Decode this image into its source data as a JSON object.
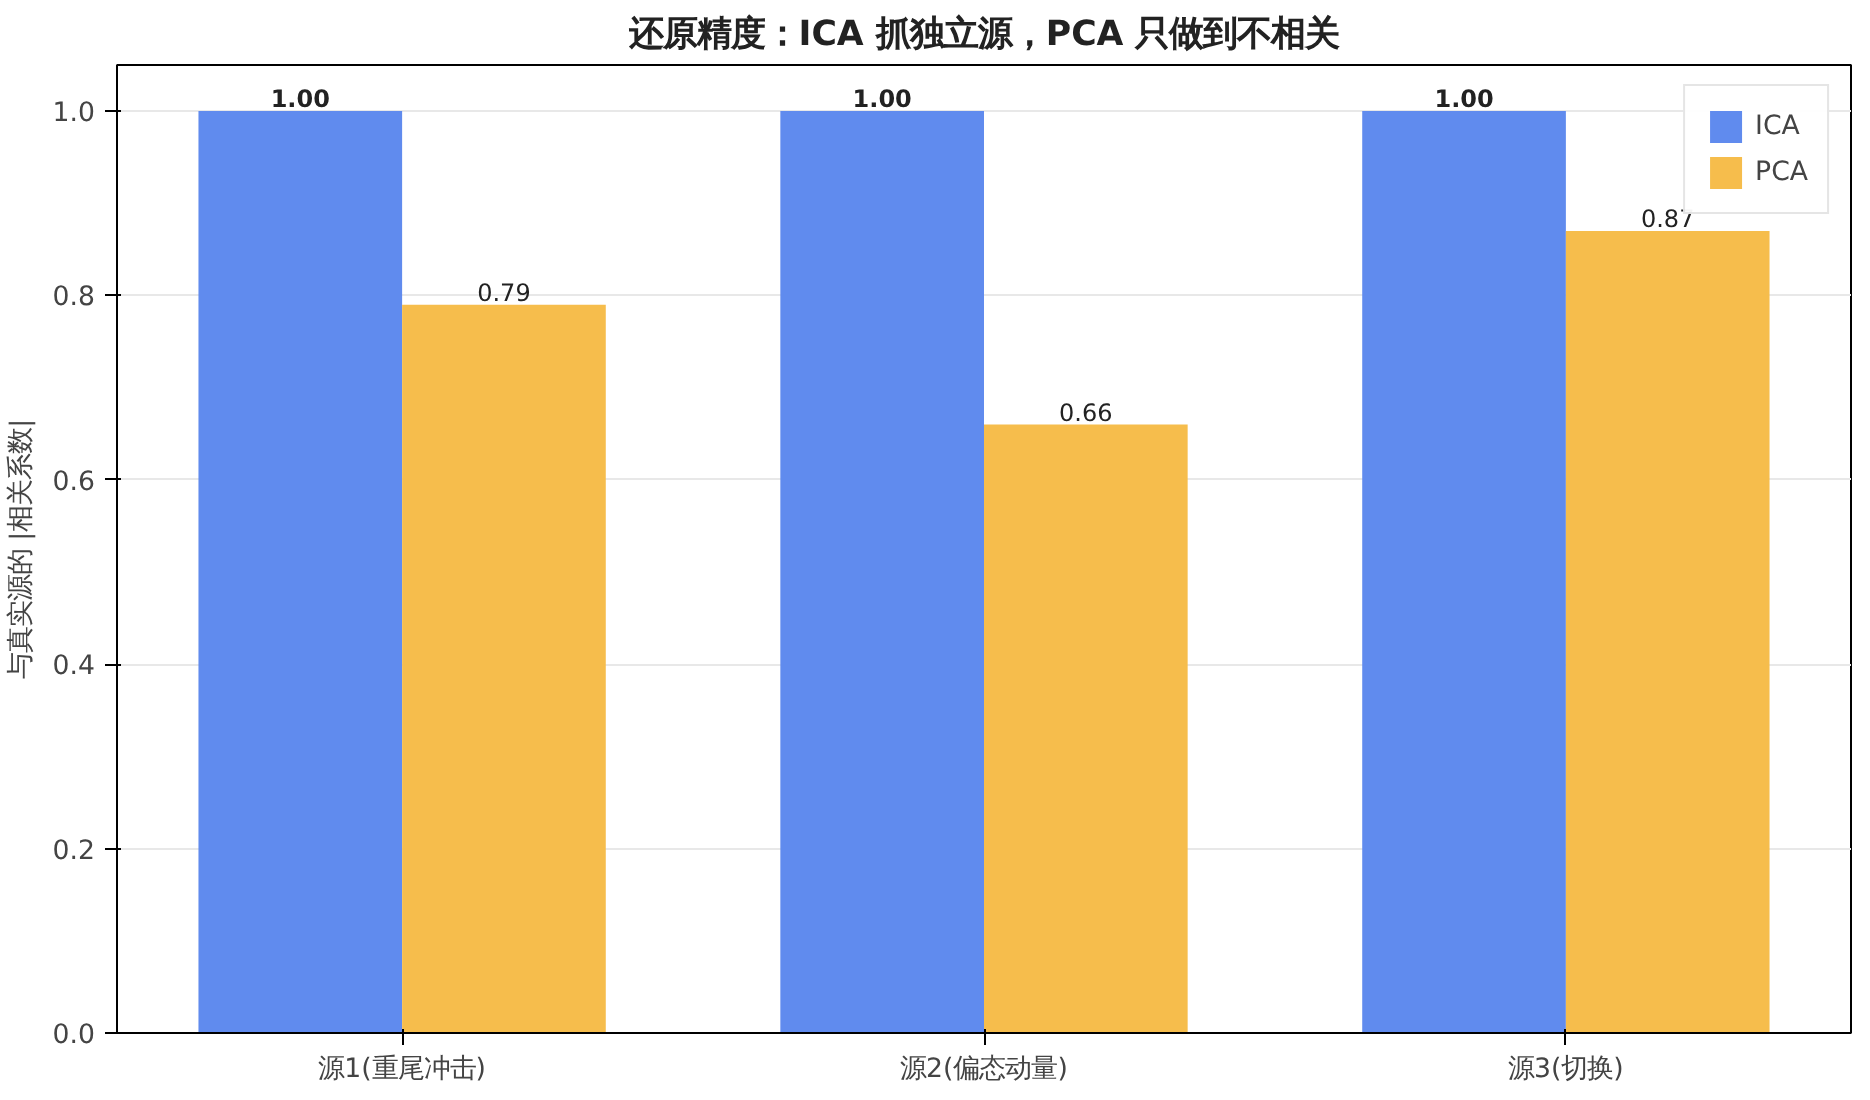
{
  "chart_data": {
    "type": "bar",
    "title": "还原精度：ICA 抓独立源，PCA 只做到不相关",
    "ylabel": "与真实源的 |相关系数|",
    "categories": [
      "源1(重尾冲击)",
      "源2(偏态动量)",
      "源3(切换)"
    ],
    "series": [
      {
        "name": "ICA",
        "color": "#608bee",
        "values": [
          1.0,
          1.0,
          1.0
        ],
        "value_labels": [
          "1.00",
          "1.00",
          "1.00"
        ]
      },
      {
        "name": "PCA",
        "color": "#f6bd4c",
        "values": [
          0.79,
          0.66,
          0.87
        ],
        "value_labels": [
          "0.79",
          "0.66",
          "0.87"
        ]
      }
    ],
    "ylim": [
      0,
      1.05
    ],
    "yticks": [
      {
        "value": 0,
        "label": "0.0"
      },
      0.2,
      0.4,
      0.6,
      0.8,
      {
        "value": 1,
        "label": "1.0"
      }
    ],
    "grid": "y",
    "legend": "top right"
  }
}
